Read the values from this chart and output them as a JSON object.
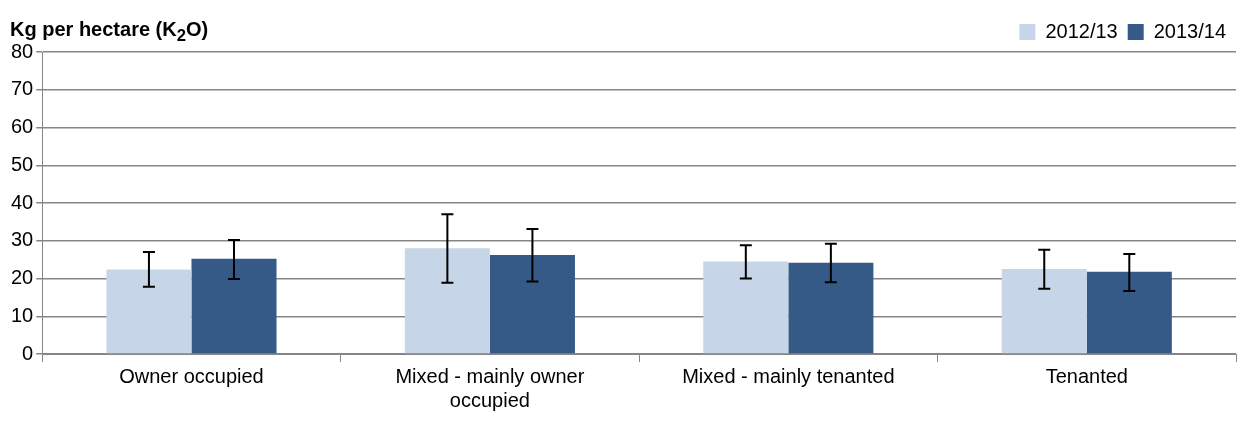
{
  "chart_data": {
    "type": "bar",
    "ylabel": "Kg per hectare (K$_{2}$O)",
    "categories": [
      "Owner occupied",
      "Mixed - mainly owner occupied",
      "Mixed - mainly tenanted",
      "Tenanted"
    ],
    "series": [
      {
        "name": "2012/13",
        "color": "#c6d5e8",
        "values": [
          22.4,
          28.0,
          24.5,
          22.5
        ],
        "errors": [
          [
            17.8,
            27.0
          ],
          [
            18.9,
            37.0
          ],
          [
            20.0,
            28.8
          ],
          [
            17.3,
            27.6
          ]
        ]
      },
      {
        "name": "2013/14",
        "color": "#355a87",
        "values": [
          25.2,
          26.2,
          24.2,
          21.8
        ],
        "errors": [
          [
            19.9,
            30.2
          ],
          [
            19.2,
            33.1
          ],
          [
            19.0,
            29.2
          ],
          [
            16.7,
            26.5
          ]
        ]
      }
    ],
    "ylim": [
      0,
      80
    ],
    "yticks": [
      0,
      10,
      20,
      30,
      40,
      50,
      60,
      70,
      80
    ],
    "grid": "y",
    "legend": "top right"
  }
}
